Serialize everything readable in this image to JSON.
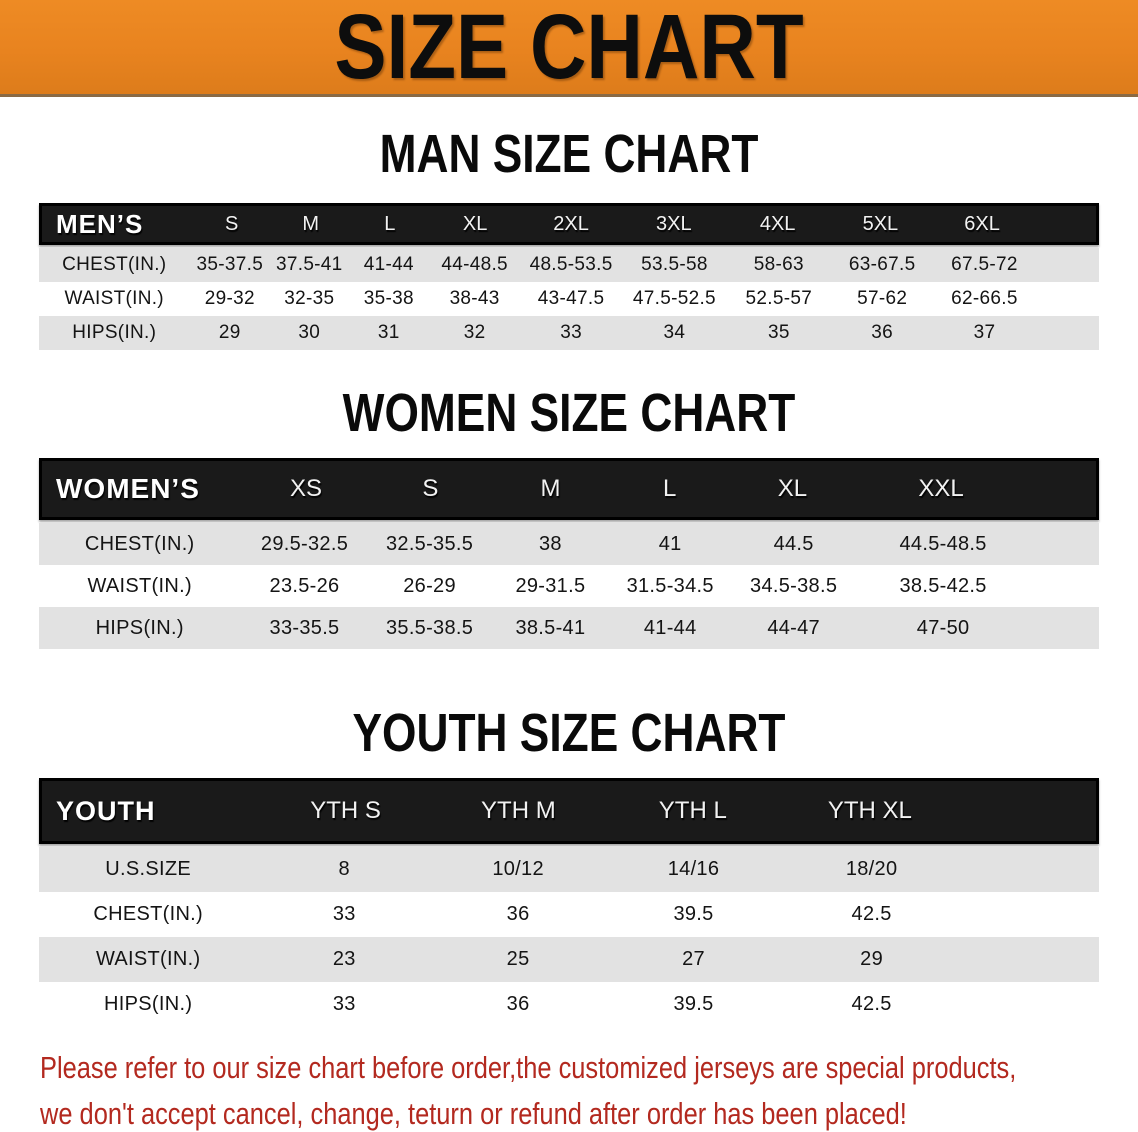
{
  "banner": {
    "title": "SIZE CHART"
  },
  "tables": [
    {
      "section_title": "MAN SIZE CHART",
      "header": {
        "label": "MEN’S",
        "columns": [
          "S",
          "M",
          "L",
          "XL",
          "2XL",
          "3XL",
          "4XL",
          "5XL",
          "6XL"
        ]
      },
      "rows": [
        {
          "label": "CHEST(IN.)",
          "values": [
            "35-37.5",
            "37.5-41",
            "41-44",
            "44-48.5",
            "48.5-53.5",
            "53.5-58",
            "58-63",
            "63-67.5",
            "67.5-72"
          ]
        },
        {
          "label": "WAIST(IN.)",
          "values": [
            "29-32",
            "32-35",
            "35-38",
            "38-43",
            "43-47.5",
            "47.5-52.5",
            "52.5-57",
            "57-62",
            "62-66.5"
          ]
        },
        {
          "label": "HIPS(IN.)",
          "values": [
            "29",
            "30",
            "31",
            "32",
            "33",
            "34",
            "35",
            "36",
            "37"
          ]
        }
      ]
    },
    {
      "section_title": "WOMEN SIZE CHART",
      "header": {
        "label": "WOMEN’S",
        "columns": [
          "XS",
          "S",
          "M",
          "L",
          "XL",
          "XXL"
        ]
      },
      "rows": [
        {
          "label": "CHEST(IN.)",
          "values": [
            "29.5-32.5",
            "32.5-35.5",
            "38",
            "41",
            "44.5",
            "44.5-48.5"
          ]
        },
        {
          "label": "WAIST(IN.)",
          "values": [
            "23.5-26",
            "26-29",
            "29-31.5",
            "31.5-34.5",
            "34.5-38.5",
            "38.5-42.5"
          ]
        },
        {
          "label": "HIPS(IN.)",
          "values": [
            "33-35.5",
            "35.5-38.5",
            "38.5-41",
            "41-44",
            "44-47",
            "47-50"
          ]
        }
      ]
    },
    {
      "section_title": "YOUTH SIZE CHART",
      "header": {
        "label": "YOUTH",
        "columns": [
          "YTH S",
          "YTH M",
          "YTH L",
          "YTH XL"
        ]
      },
      "rows": [
        {
          "label": "U.S.SIZE",
          "values": [
            "8",
            "10/12",
            "14/16",
            "18/20"
          ]
        },
        {
          "label": "CHEST(IN.)",
          "values": [
            "33",
            "36",
            "39.5",
            "42.5"
          ]
        },
        {
          "label": "WAIST(IN.)",
          "values": [
            "23",
            "25",
            "27",
            "29"
          ]
        },
        {
          "label": "HIPS(IN.)",
          "values": [
            "33",
            "36",
            "39.5",
            "42.5"
          ]
        }
      ]
    }
  ],
  "disclaimer": {
    "line1": "Please refer to our size chart before order,the customized jerseys are special products,",
    "line2": "we don't accept cancel, change, teturn or refund after order has been placed!"
  },
  "theme": {
    "banner_bg": "#e8831f",
    "header_bar_bg": "#1a1a1a",
    "row_stripe": "#e2e2e2",
    "disclaimer_red": "#b3291f"
  }
}
